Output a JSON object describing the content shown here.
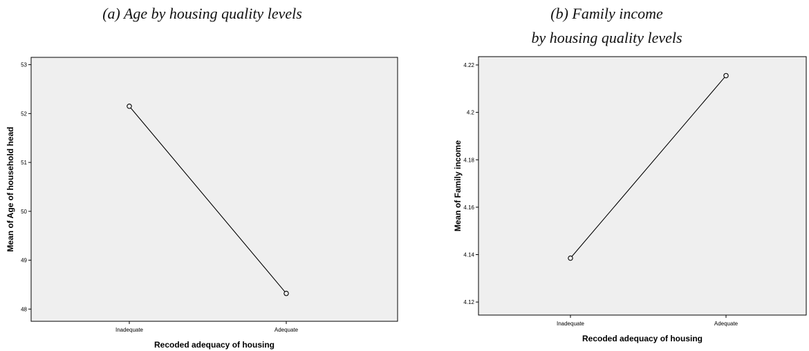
{
  "chart_data": [
    {
      "type": "line",
      "title": "(a) Age by housing quality levels",
      "subtitle": "",
      "xlabel": "Recoded adequacy of housing",
      "ylabel": "Mean of Age of household head",
      "categories": [
        "Inadequate",
        "Adequate"
      ],
      "values": [
        52.15,
        48.32
      ],
      "ylim": [
        47.75,
        53.15
      ],
      "yticks": [
        48,
        49,
        50,
        51,
        52,
        53
      ],
      "ytick_labels": [
        "48",
        "49",
        "50",
        "51",
        "52",
        "53"
      ],
      "grid": false,
      "legend": "none"
    },
    {
      "type": "line",
      "title": "(b) Family income",
      "subtitle": "by housing quality levels",
      "xlabel": "Recoded adequacy of housing",
      "ylabel": "Mean of Family income",
      "categories": [
        "Inadequate",
        "Adequate"
      ],
      "values": [
        4.1385,
        4.2155
      ],
      "ylim": [
        4.1145,
        4.2235
      ],
      "yticks": [
        4.12,
        4.14,
        4.16,
        4.18,
        4.2,
        4.22
      ],
      "ytick_labels": [
        "4.12",
        "4.14",
        "4.16",
        "4.18",
        "4.2",
        "4.22"
      ],
      "grid": false,
      "legend": "none"
    }
  ]
}
